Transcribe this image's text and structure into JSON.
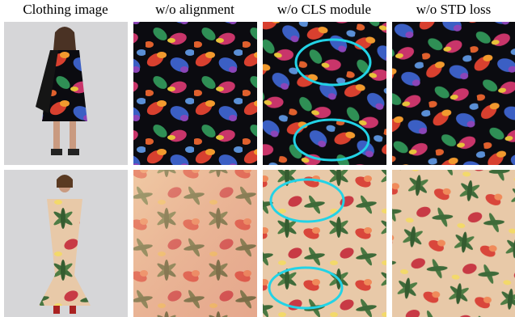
{
  "headers": [
    "Clothing image",
    "w/o alignment",
    "w/o CLS module",
    "w/o STD loss"
  ]
}
